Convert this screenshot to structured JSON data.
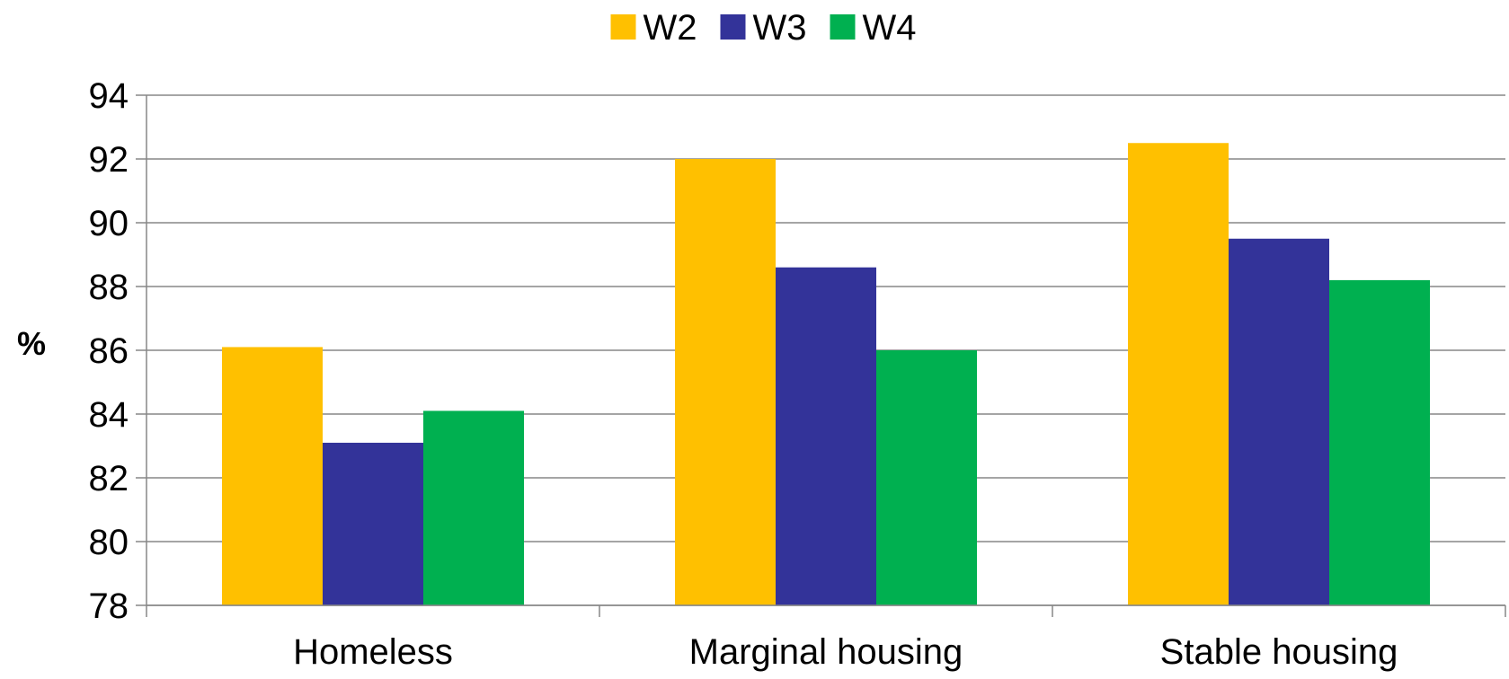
{
  "chart_data": {
    "type": "bar",
    "title": "",
    "xlabel": "",
    "ylabel": "%",
    "categories": [
      "Homeless",
      "Marginal housing",
      "Stable housing"
    ],
    "series": [
      {
        "name": "W2",
        "color": "#FFC000",
        "values": [
          86.1,
          92.0,
          92.5
        ]
      },
      {
        "name": "W3",
        "color": "#333399",
        "values": [
          83.1,
          88.6,
          89.5
        ]
      },
      {
        "name": "W4",
        "color": "#00B050",
        "values": [
          84.1,
          86.0,
          88.2
        ]
      }
    ],
    "ylim": [
      78,
      94
    ],
    "yticks": [
      78,
      80,
      82,
      84,
      86,
      88,
      90,
      92,
      94
    ],
    "grid": true,
    "legend": "top-center"
  }
}
